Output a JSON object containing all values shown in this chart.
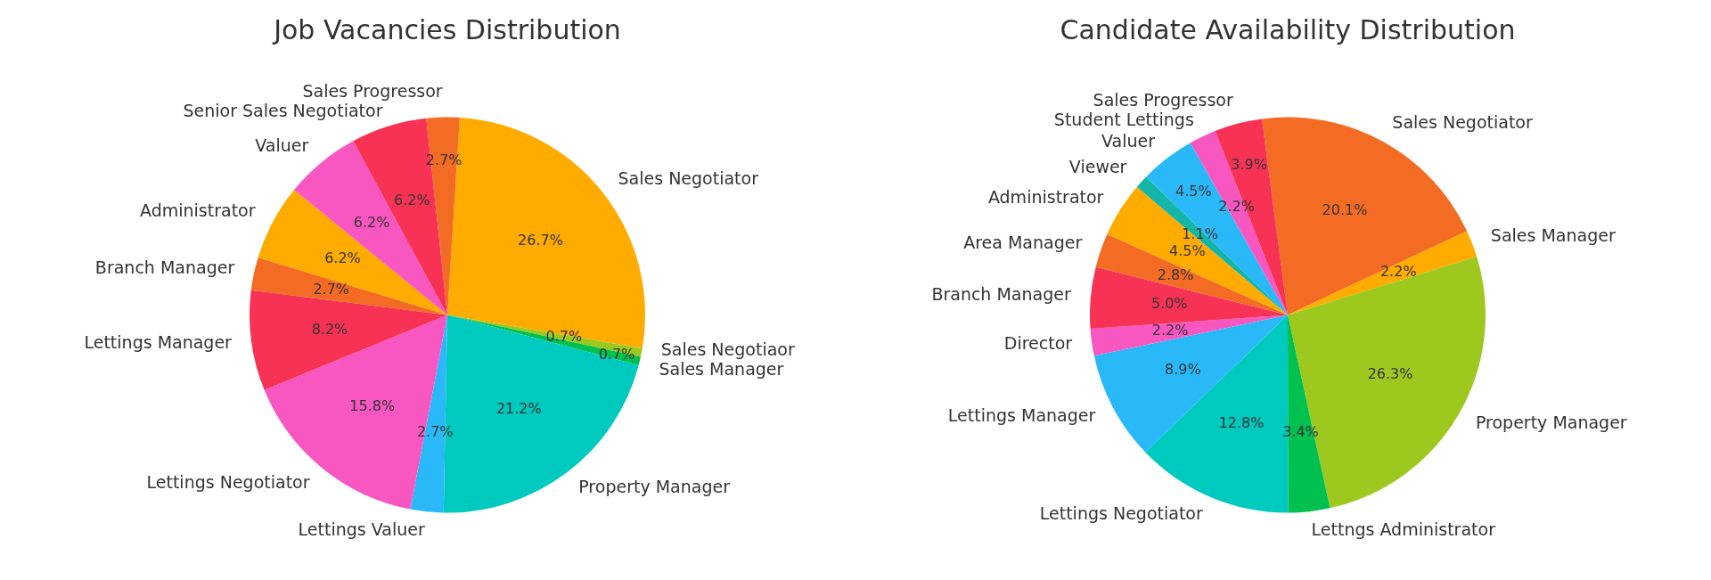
{
  "chart_data": [
    {
      "type": "pie",
      "title": "Job Vacancies Distribution",
      "categories": [
        "Sales Negotiator",
        "Sales Negotiaor",
        "Sales Manager",
        "Property Manager",
        "Lettings Valuer",
        "Lettings Negotiator",
        "Lettings Manager",
        "Branch Manager",
        "Administrator",
        "Valuer",
        "Senior Sales Negotiator",
        "Sales Progressor"
      ],
      "values": [
        26.7,
        0.7,
        0.7,
        21.2,
        2.7,
        15.8,
        8.2,
        2.7,
        6.2,
        6.2,
        6.2,
        2.7
      ],
      "value_labels": [
        "26.7%",
        "0.7%",
        "0.7%",
        "21.2%",
        "2.7%",
        "15.8%",
        "8.2%",
        "2.7%",
        "6.2%",
        "6.2%",
        "6.2%",
        "2.7%"
      ],
      "colors": [
        "#ffab00",
        "#9dc91f",
        "#00c04f",
        "#00c9bd",
        "#29b9f9",
        "#f857c1",
        "#f73255",
        "#f46b23",
        "#ffab00",
        "#f857c1",
        "#f73255",
        "#f46b23"
      ]
    },
    {
      "type": "pie",
      "title": "Candidate Availability Distribution",
      "categories": [
        "Sales Negotiator",
        "Sales Manager",
        "Property Manager",
        "Lettngs Administrator",
        "Lettings Negotiator",
        "Lettings Manager",
        "Director",
        "Branch Manager",
        "Area Manager",
        "Administrator",
        "Viewer",
        "Valuer",
        "Student Lettings",
        "Sales Progressor"
      ],
      "values": [
        20.1,
        2.2,
        26.3,
        3.4,
        12.8,
        8.9,
        2.2,
        5.0,
        2.8,
        4.5,
        1.1,
        4.5,
        2.2,
        3.9
      ],
      "value_labels": [
        "20.1%",
        "2.2%",
        "26.3%",
        "3.4%",
        "12.8%",
        "8.9%",
        "2.2%",
        "5.0%",
        "2.8%",
        "4.5%",
        "1.1%",
        "4.5%",
        "2.2%",
        "3.9%"
      ],
      "colors": [
        "#f46b23",
        "#ffab00",
        "#9dc91f",
        "#00c04f",
        "#00c9bd",
        "#29b9f9",
        "#f857c1",
        "#f73255",
        "#f46b23",
        "#ffab00",
        "#12b5a6",
        "#29b9f9",
        "#f857c1",
        "#f73255"
      ]
    }
  ]
}
